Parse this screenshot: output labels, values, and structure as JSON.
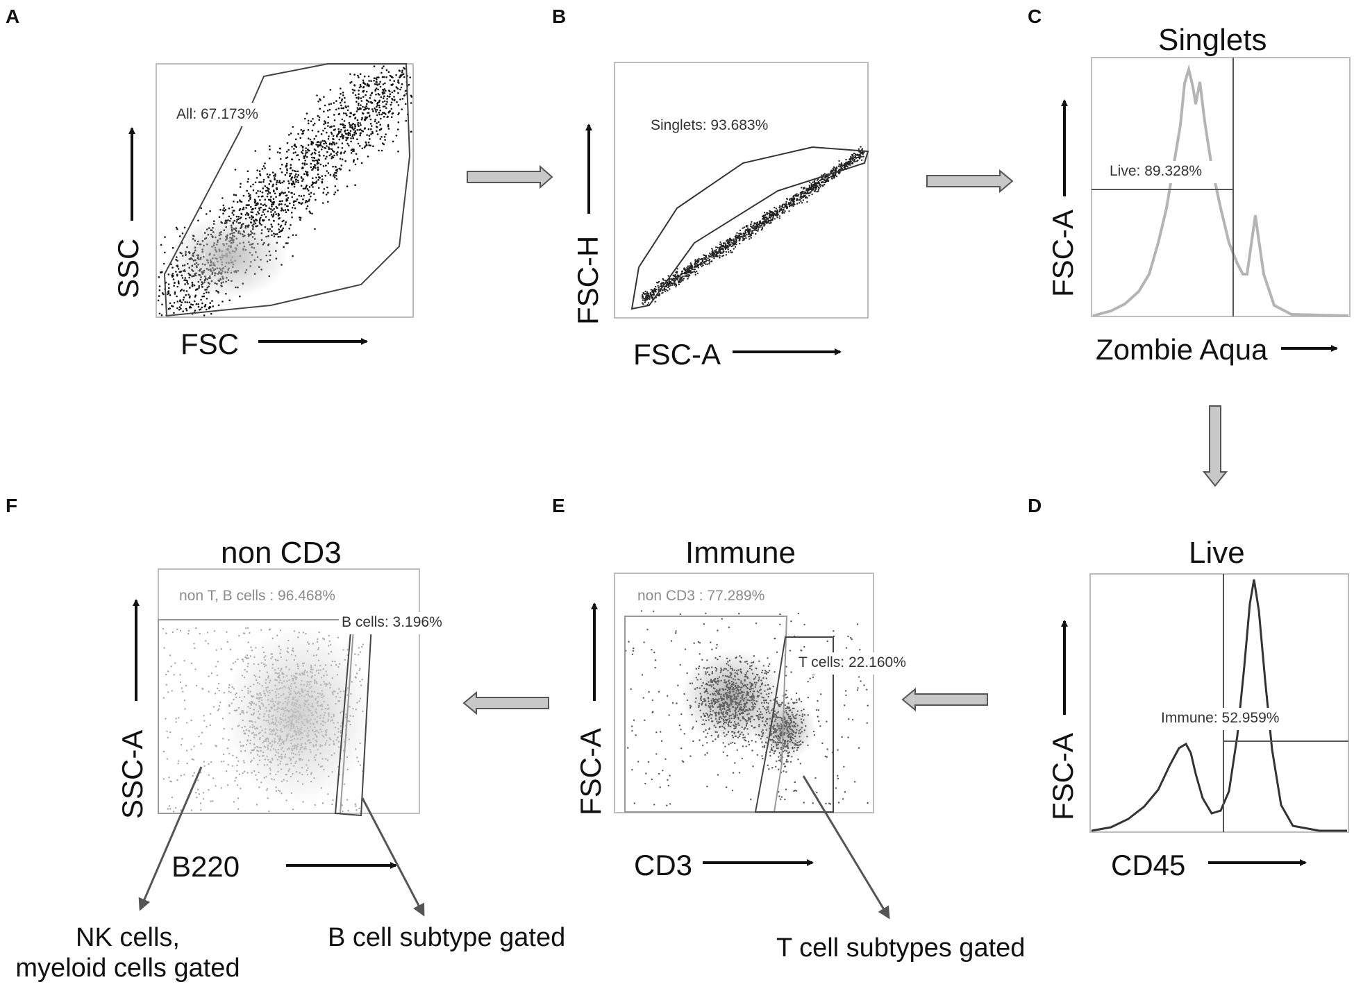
{
  "panels": {
    "A": {
      "letter": "A",
      "x_label": "FSC",
      "y_label": "SSC",
      "gate_label": "All: 67.173%"
    },
    "B": {
      "letter": "B",
      "x_label": "FSC-A",
      "y_label": "FSC-H",
      "gate_label": "Singlets: 93.683%"
    },
    "C": {
      "letter": "C",
      "title": "Singlets",
      "x_label": "Zombie Aqua",
      "y_label": "FSC-A",
      "gate_label": "Live: 89.328%"
    },
    "D": {
      "letter": "D",
      "title": "Live",
      "x_label": "CD45",
      "y_label": "FSC-A",
      "gate_label": "Immune: 52.959%"
    },
    "E": {
      "letter": "E",
      "title": "Immune",
      "x_label": "CD3",
      "y_label": "FSC-A",
      "gate_label_1": "non CD3 : 77.289%",
      "gate_label_2": "T cells: 22.160%",
      "caption": "T cell subtypes gated"
    },
    "F": {
      "letter": "F",
      "title": "non CD3",
      "x_label": "B220",
      "y_label": "SSC-A",
      "gate_label_1": "non T, B cells : 96.468%",
      "gate_label_2": "B cells: 3.196%",
      "caption_1_line1": "NK cells,",
      "caption_1_line2": "myeloid cells gated",
      "caption_2": "B cell subtype gated"
    }
  },
  "colors": {
    "ink": "#111111",
    "gate": "#444444",
    "flow_arrow_fill": "#c8c8c8",
    "flow_arrow_stroke": "#555555",
    "faint_dot": "#9a9a9a"
  }
}
